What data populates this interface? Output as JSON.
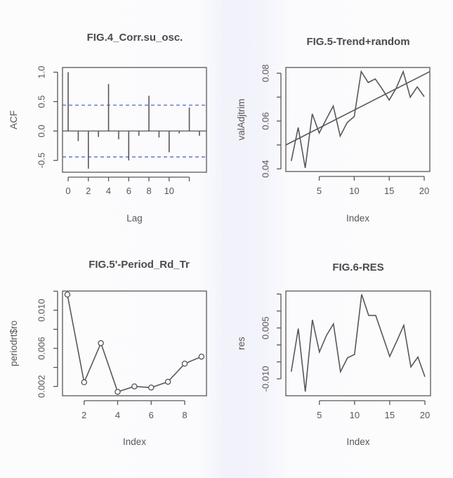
{
  "chart_data": [
    {
      "type": "bar",
      "subtype": "acf-spikes",
      "title": "FIG.4_Corr.su_osc.",
      "xlabel": "Lag",
      "ylabel": "ACF",
      "x": [
        0,
        1,
        2,
        3,
        4,
        5,
        6,
        7,
        8,
        9,
        10,
        11,
        12,
        13
      ],
      "values": [
        1.0,
        -0.17,
        -0.64,
        -0.1,
        0.8,
        -0.14,
        -0.5,
        -0.08,
        0.6,
        -0.11,
        -0.36,
        -0.04,
        0.4,
        -0.08
      ],
      "confidence_bounds": [
        -0.44,
        0.44
      ],
      "confidence_color": "#4a5fc1",
      "xlim": [
        -0.56,
        13.7
      ],
      "ylim": [
        -0.7,
        1.08
      ],
      "xticks": [
        0,
        2,
        4,
        6,
        8,
        10,
        12
      ],
      "xtick_labels": [
        "0",
        "2",
        "4",
        "6",
        "8",
        "10",
        ""
      ],
      "yticks": [
        -0.5,
        0,
        0.5,
        1.0
      ],
      "ytick_labels": [
        "-0.5",
        "0.0",
        "0.5",
        "1.0"
      ],
      "grid": false
    },
    {
      "type": "line",
      "title": "FIG.5-Trend+random",
      "xlabel": "Index",
      "ylabel": "valAdjtrim",
      "x": [
        1,
        2,
        3,
        4,
        5,
        6,
        7,
        8,
        9,
        10,
        11,
        12,
        13,
        14,
        15,
        16,
        17,
        18,
        19,
        20
      ],
      "series": [
        {
          "values": [
            0.0433,
            0.0573,
            0.0404,
            0.063,
            0.055,
            0.0607,
            0.0663,
            0.0537,
            0.0594,
            0.0619,
            0.0807,
            0.0761,
            0.0776,
            0.0734,
            0.0688,
            0.0738,
            0.0807,
            0.07,
            0.0743,
            0.0702
          ]
        }
      ],
      "trend_line": {
        "x": [
          0.23,
          20.8
        ],
        "y": [
          0.05,
          0.0807
        ]
      },
      "xlim": [
        0.23,
        20.8
      ],
      "ylim": [
        0.0389,
        0.0824
      ],
      "xticks": [
        5,
        10,
        15,
        20
      ],
      "xtick_labels": [
        "5",
        "10",
        "15",
        "20"
      ],
      "yticks": [
        0.04,
        0.05,
        0.06,
        0.07,
        0.08
      ],
      "ytick_labels": [
        "0.04",
        "",
        "0.06",
        "",
        "0.08"
      ],
      "grid": false
    },
    {
      "type": "line",
      "markers": "open-circle",
      "title": "FIG.5'-Period_Rd_Tr",
      "xlabel": "Index",
      "ylabel": "periodrt$ro",
      "x": [
        1,
        2,
        3,
        4,
        5,
        6,
        7,
        8,
        9
      ],
      "series": [
        {
          "values": [
            0.01165,
            0.00244,
            0.00655,
            0.00143,
            0.002,
            0.00188,
            0.00249,
            0.00439,
            0.00513
          ]
        }
      ],
      "xlim": [
        0.71,
        9.3
      ],
      "ylim": [
        0.00102,
        0.01202
      ],
      "xticks": [
        2,
        4,
        6,
        8
      ],
      "xtick_labels": [
        "2",
        "4",
        "6",
        "8"
      ],
      "yticks": [
        0.002,
        0.004,
        0.006,
        0.008,
        0.01,
        0.012
      ],
      "ytick_labels": [
        "0.002",
        "",
        "0.006",
        "",
        "0.010",
        ""
      ],
      "grid": false
    },
    {
      "type": "line",
      "title": "FIG.6-RES",
      "xlabel": "Index",
      "ylabel": "res",
      "x": [
        1,
        2,
        3,
        4,
        5,
        6,
        7,
        8,
        9,
        10,
        11,
        12,
        13,
        14,
        15,
        16,
        17,
        18,
        19,
        20
      ],
      "series": [
        {
          "values": [
            -0.0079,
            0.0048,
            -0.0138,
            0.0074,
            -0.0021,
            0.0028,
            0.0062,
            -0.0079,
            -0.0038,
            -0.0028,
            0.0149,
            0.0087,
            0.0087,
            0.0027,
            -0.0034,
            0.0011,
            0.0058,
            -0.0065,
            -0.0036,
            -0.0094
          ]
        }
      ],
      "xlim": [
        0.23,
        20.8
      ],
      "ylim": [
        -0.015,
        0.0159
      ],
      "xticks": [
        5,
        10,
        15,
        20
      ],
      "xtick_labels": [
        "5",
        "10",
        "15",
        "20"
      ],
      "yticks": [
        -0.01,
        -0.005,
        0,
        0.005,
        0.01,
        0.015
      ],
      "ytick_labels": [
        "-0.010",
        "",
        "",
        "0.005",
        "",
        ""
      ],
      "grid": false
    }
  ],
  "colors": {
    "ink": "#5a5558",
    "axis": "#5b5659",
    "confidence": "#4a5fc1"
  }
}
